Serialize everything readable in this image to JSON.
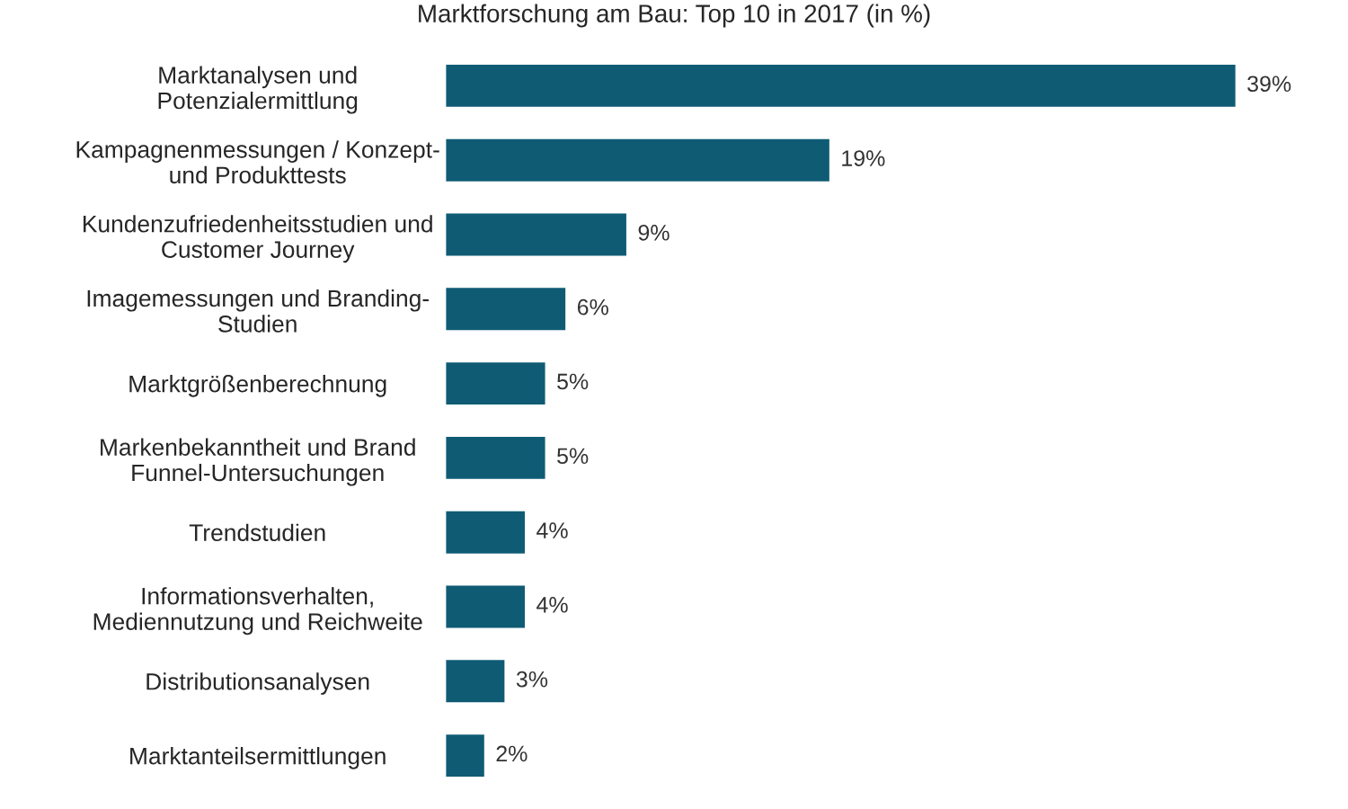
{
  "chart_data": {
    "type": "bar",
    "orientation": "horizontal",
    "title": "Marktforschung am Bau: Top 10 in 2017 (in %)",
    "categories": [
      "Marktanalysen und\nPotenzialermittlung",
      "Kampagnenmessungen / Konzept-\nund Produkttests",
      "Kundenzufriedenheitsstudien und\nCustomer Journey",
      "Imagemessungen und Branding-\nStudien",
      "Marktgrößenberechnung",
      "Markenbekanntheit und Brand\nFunnel-Untersuchungen",
      "Trendstudien",
      "Informationsverhalten,\nMediennutzung und Reichweite",
      "Distributionsanalysen",
      "Marktanteilsermittlungen"
    ],
    "series": [
      {
        "color": "#0f5b74",
        "values": [
          39,
          19,
          9,
          6,
          5,
          5,
          4,
          4,
          3,
          2
        ],
        "value_labels": [
          "39%",
          "19%",
          "9%",
          "6%",
          "5%",
          "5%",
          "4%",
          "4%",
          "3%",
          "2%"
        ]
      }
    ],
    "tick_labels": "y"
  }
}
